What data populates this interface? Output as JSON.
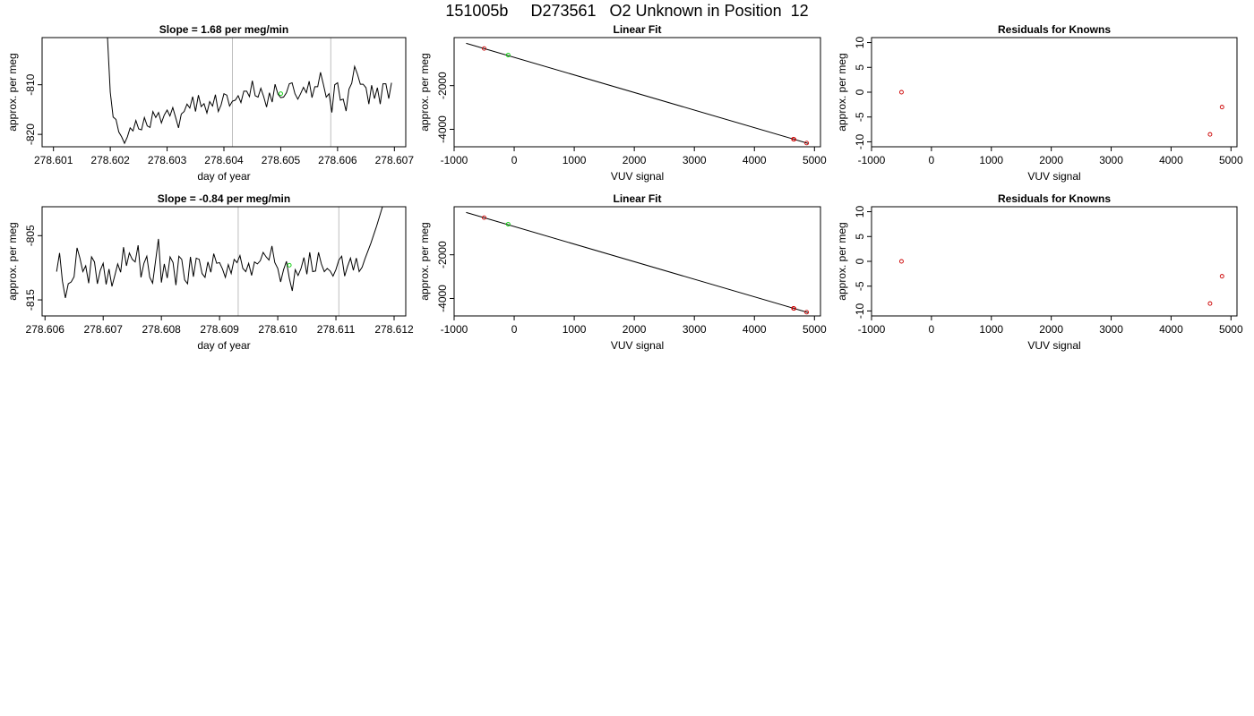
{
  "page_title": "151005b     D273561   O2 Unknown in Position  12",
  "chart_data": [
    {
      "type": "line",
      "title": "Slope =  1.68  per meg/min",
      "xlabel": "day of year",
      "ylabel": "approx. per meg",
      "xlim": [
        278.6008,
        278.6072
      ],
      "ylim": [
        -822.5,
        -800.5
      ],
      "xticks": [
        "278.601",
        "278.602",
        "278.603",
        "278.604",
        "278.605",
        "278.606",
        "278.607"
      ],
      "yticks": [
        "-810",
        "-820"
      ],
      "ytick_values": [
        -810,
        -820
      ],
      "vlines": [
        278.60415,
        278.60588
      ],
      "series": [
        {
          "style": "line",
          "color": "#000000",
          "x": [
            278.60195,
            278.602,
            278.60205,
            278.6021,
            278.60215,
            278.6022,
            278.60225,
            278.6023,
            278.60235,
            278.6024,
            278.60245,
            278.6025,
            278.60255,
            278.6026,
            278.60265,
            278.6027,
            278.60275,
            278.6028,
            278.60285,
            278.6029,
            278.60295,
            278.603,
            278.60305,
            278.6031,
            278.60315,
            278.6032,
            278.60325,
            278.6033,
            278.60335,
            278.6034,
            278.60345,
            278.6035,
            278.60355,
            278.6036,
            278.60365,
            278.6037,
            278.60375,
            278.6038,
            278.60385,
            278.6039,
            278.60395,
            278.604,
            278.60405,
            278.6041,
            278.60415,
            278.6042,
            278.60425,
            278.6043,
            278.60435,
            278.6044,
            278.60445,
            278.6045,
            278.60455,
            278.6046,
            278.60465,
            278.6047,
            278.60475,
            278.6048,
            278.60485,
            278.6049,
            278.60495,
            278.605,
            278.60505,
            278.6051,
            278.60515,
            278.6052,
            278.60525,
            278.6053,
            278.60535,
            278.6054,
            278.60545,
            278.6055,
            278.60555,
            278.6056,
            278.60565,
            278.6057,
            278.60575,
            278.6058,
            278.60585,
            278.6059,
            278.60595,
            278.606,
            278.60605,
            278.6061,
            278.60615,
            278.6062,
            278.60625,
            278.6063,
            278.60635,
            278.6064,
            278.60645,
            278.6065,
            278.60655,
            278.6066,
            278.60665,
            278.6067,
            278.60675,
            278.6068,
            278.60685,
            278.6069,
            278.60695
          ],
          "y": [
            -800.5,
            -811.5,
            -816.5,
            -817,
            -819.5,
            -820.5,
            -821.8,
            -820.5,
            -818.7,
            -819.3,
            -817.2,
            -818.9,
            -819.1,
            -816.6,
            -818.3,
            -818.6,
            -815.4,
            -816.6,
            -815.6,
            -817.7,
            -816.1,
            -815.1,
            -816.3,
            -814.6,
            -816.6,
            -818.7,
            -815.9,
            -815.4,
            -813.9,
            -814.7,
            -812.4,
            -815.4,
            -812.1,
            -814.4,
            -813.8,
            -815.7,
            -813.4,
            -814.3,
            -812,
            -815.4,
            -814.1,
            -811.8,
            -812.1,
            -814.3,
            -813.3,
            -813.1,
            -812.2,
            -813.6,
            -811.3,
            -811.3,
            -812.4,
            -809.2,
            -812.2,
            -812.5,
            -810.7,
            -812.4,
            -814.5,
            -811.6,
            -813.5,
            -809.9,
            -811.9,
            -812.6,
            -812.5,
            -811.6,
            -809.8,
            -809.6,
            -811.8,
            -812.9,
            -811.8,
            -810.5,
            -811.6,
            -809.3,
            -812.6,
            -810.4,
            -810.4,
            -807.5,
            -809.9,
            -812.5,
            -811.8,
            -815.6,
            -810,
            -809.6,
            -813.1,
            -812.9,
            -815.3,
            -810.9,
            -809.7,
            -806.3,
            -807.9,
            -809.9,
            -809.9,
            -810.6,
            -813.9,
            -810.1,
            -812.8,
            -810.6,
            -813.9,
            -809.8,
            -809.8,
            -812.8,
            -809.6
          ]
        },
        {
          "style": "point",
          "color": "#00cc00",
          "x": [
            278.605
          ],
          "y": [
            -811.8
          ]
        }
      ]
    },
    {
      "type": "scatter",
      "title": "Linear Fit",
      "xlabel": "VUV signal",
      "ylabel": "approx. per meg",
      "xlim": [
        -1000,
        5100
      ],
      "ylim": [
        -4800,
        200
      ],
      "xticks": [
        "-1000",
        "0",
        "1000",
        "2000",
        "3000",
        "4000",
        "5000"
      ],
      "xtick_values": [
        -1000,
        0,
        1000,
        2000,
        3000,
        4000,
        5000
      ],
      "yticks": [
        "-2000",
        "-4000"
      ],
      "ytick_values": [
        -2000,
        -4000
      ],
      "fit_line": {
        "x": [
          -800,
          4900
        ],
        "y": [
          -60,
          -4650
        ]
      },
      "series": [
        {
          "style": "point",
          "color": "#cc0000",
          "x": [
            -500,
            4650,
            4660,
            4870
          ],
          "y": [
            -300,
            -4450,
            -4460,
            -4630
          ]
        },
        {
          "style": "point",
          "color": "#00cc00",
          "x": [
            -100
          ],
          "y": [
            -600
          ]
        }
      ]
    },
    {
      "type": "scatter",
      "title": "Residuals for Knowns",
      "xlabel": "VUV signal",
      "ylabel": "approx. per meg",
      "xlim": [
        -1000,
        5100
      ],
      "ylim": [
        -11,
        11
      ],
      "xticks": [
        "-1000",
        "0",
        "1000",
        "2000",
        "3000",
        "4000",
        "5000"
      ],
      "xtick_values": [
        -1000,
        0,
        1000,
        2000,
        3000,
        4000,
        5000
      ],
      "yticks": [
        "10",
        "5",
        "0",
        "-5",
        "-10"
      ],
      "ytick_values": [
        10,
        5,
        0,
        -5,
        -10
      ],
      "series": [
        {
          "style": "point",
          "color": "#cc0000",
          "x": [
            -500,
            4650,
            4850
          ],
          "y": [
            0,
            -8.5,
            -3
          ]
        }
      ]
    },
    {
      "type": "line",
      "title": "Slope =  -0.84  per meg/min",
      "xlabel": "day of year",
      "ylabel": "approx. per meg",
      "xlim": [
        278.60595,
        278.6122
      ],
      "ylim": [
        -817.5,
        -800.5
      ],
      "xticks": [
        "278.606",
        "278.607",
        "278.608",
        "278.609",
        "278.610",
        "278.611",
        "278.612"
      ],
      "yticks": [
        "-805",
        "-815"
      ],
      "ytick_values": [
        -805,
        -815
      ],
      "vlines": [
        278.60932,
        278.61105
      ],
      "series": [
        {
          "style": "line",
          "color": "#000000",
          "x": [
            278.6062,
            278.60625,
            278.6063,
            278.60635,
            278.6064,
            278.60645,
            278.6065,
            278.60655,
            278.6066,
            278.60665,
            278.6067,
            278.60675,
            278.6068,
            278.60685,
            278.6069,
            278.60695,
            278.607,
            278.60705,
            278.6071,
            278.60715,
            278.6072,
            278.60725,
            278.6073,
            278.60735,
            278.6074,
            278.60745,
            278.6075,
            278.60755,
            278.6076,
            278.60765,
            278.6077,
            278.60775,
            278.6078,
            278.60785,
            278.6079,
            278.60795,
            278.608,
            278.60805,
            278.6081,
            278.60815,
            278.6082,
            278.60825,
            278.6083,
            278.60835,
            278.6084,
            278.60845,
            278.6085,
            278.60855,
            278.6086,
            278.60865,
            278.6087,
            278.60875,
            278.6088,
            278.60885,
            278.6089,
            278.60895,
            278.609,
            278.60905,
            278.6091,
            278.60915,
            278.6092,
            278.60925,
            278.6093,
            278.60935,
            278.6094,
            278.60945,
            278.6095,
            278.60955,
            278.6096,
            278.60965,
            278.6097,
            278.60975,
            278.6098,
            278.60985,
            278.6099,
            278.60995,
            278.61,
            278.61005,
            278.6101,
            278.61015,
            278.6102,
            278.61025,
            278.6103,
            278.61035,
            278.6104,
            278.61045,
            278.6105,
            278.61055,
            278.6106,
            278.61065,
            278.6107,
            278.61075,
            278.6108,
            278.61085,
            278.6109,
            278.61095,
            278.611,
            278.61105,
            278.6111,
            278.61115,
            278.6112,
            278.61125,
            278.6113,
            278.61135,
            278.6114,
            278.61145,
            278.6115,
            278.6116,
            278.6117,
            278.6118,
            278.6119,
            278.612,
            278.6121
          ],
          "y": [
            -810.6,
            -807.7,
            -812.1,
            -814.7,
            -812.5,
            -812.2,
            -811.4,
            -806.9,
            -808.5,
            -810.6,
            -809.7,
            -812.4,
            -808.3,
            -809.1,
            -812.5,
            -810.4,
            -809.3,
            -812.6,
            -810.2,
            -812.9,
            -811.2,
            -809.4,
            -810.7,
            -806.8,
            -809.7,
            -807.7,
            -808.7,
            -809.1,
            -806.5,
            -811.5,
            -809.3,
            -808.2,
            -811.5,
            -812.4,
            -808.9,
            -805.5,
            -812.3,
            -809.4,
            -811.6,
            -808.3,
            -809.2,
            -812.7,
            -808.2,
            -808.7,
            -811.9,
            -812.5,
            -808.3,
            -811.4,
            -808.5,
            -808.7,
            -810.9,
            -811.5,
            -809.1,
            -810.7,
            -807.8,
            -809.3,
            -809.2,
            -810.2,
            -811.5,
            -809.5,
            -810.9,
            -808.7,
            -809.2,
            -808.1,
            -810.1,
            -810.6,
            -809.3,
            -811.2,
            -809.1,
            -809.4,
            -808.9,
            -807.6,
            -808.3,
            -808.8,
            -806.6,
            -809.2,
            -810.1,
            -812.2,
            -810.3,
            -809,
            -811.7,
            -813.6,
            -810.3,
            -811.2,
            -810.1,
            -808.4,
            -811,
            -807.6,
            -810.6,
            -810.5,
            -807.6,
            -809.4,
            -810.6,
            -810.1,
            -810.5,
            -811.3,
            -810.3,
            -808.8,
            -808.2,
            -811.3,
            -809.8,
            -808.5,
            -810.4,
            -808.5,
            -810.6,
            -809.9,
            -808.6,
            -806.2,
            -803.5,
            -800.5,
            -800.5,
            -800.5,
            -800.5
          ]
        },
        {
          "style": "point",
          "color": "#00cc00",
          "x": [
            278.6102
          ],
          "y": [
            -809.6
          ]
        }
      ]
    },
    {
      "type": "scatter",
      "title": "Linear Fit",
      "xlabel": "VUV signal",
      "ylabel": "approx. per meg",
      "xlim": [
        -1000,
        5100
      ],
      "ylim": [
        -4800,
        200
      ],
      "xticks": [
        "-1000",
        "0",
        "1000",
        "2000",
        "3000",
        "4000",
        "5000"
      ],
      "xtick_values": [
        -1000,
        0,
        1000,
        2000,
        3000,
        4000,
        5000
      ],
      "yticks": [
        "-2000",
        "-4000"
      ],
      "ytick_values": [
        -2000,
        -4000
      ],
      "fit_line": {
        "x": [
          -800,
          4900
        ],
        "y": [
          -60,
          -4650
        ]
      },
      "series": [
        {
          "style": "point",
          "color": "#cc0000",
          "x": [
            -500,
            4650,
            4660,
            4870
          ],
          "y": [
            -300,
            -4450,
            -4460,
            -4630
          ]
        },
        {
          "style": "point",
          "color": "#00cc00",
          "x": [
            -100
          ],
          "y": [
            -600
          ]
        }
      ]
    },
    {
      "type": "scatter",
      "title": "Residuals for Knowns",
      "xlabel": "VUV signal",
      "ylabel": "approx. per meg",
      "xlim": [
        -1000,
        5100
      ],
      "ylim": [
        -11,
        11
      ],
      "xticks": [
        "-1000",
        "0",
        "1000",
        "2000",
        "3000",
        "4000",
        "5000"
      ],
      "xtick_values": [
        -1000,
        0,
        1000,
        2000,
        3000,
        4000,
        5000
      ],
      "yticks": [
        "10",
        "5",
        "0",
        "-5",
        "-10"
      ],
      "ytick_values": [
        10,
        5,
        0,
        -5,
        -10
      ],
      "series": [
        {
          "style": "point",
          "color": "#cc0000",
          "x": [
            -500,
            4650,
            4850
          ],
          "y": [
            0,
            -8.5,
            -3
          ]
        }
      ]
    }
  ]
}
